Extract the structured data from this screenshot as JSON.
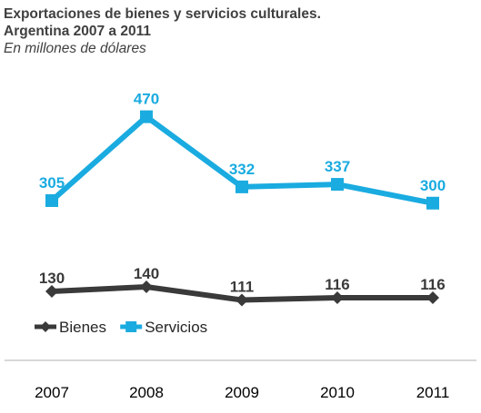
{
  "chart_data": {
    "type": "line",
    "title_line1": "Exportaciones de bienes y servicios culturales.",
    "title_line2": "Argentina 2007 a 2011",
    "subtitle": "En millones de dólares",
    "categories": [
      "2007",
      "2008",
      "2009",
      "2010",
      "2011"
    ],
    "series": [
      {
        "name": "Bienes",
        "values": [
          130,
          140,
          111,
          116,
          116
        ],
        "color": "#3a3a3a",
        "marker": "diamond"
      },
      {
        "name": "Servicios",
        "values": [
          305,
          470,
          332,
          337,
          300
        ],
        "color": "#1aabe0",
        "marker": "square"
      }
    ],
    "grid": false,
    "legend_position": "bottom-left"
  }
}
